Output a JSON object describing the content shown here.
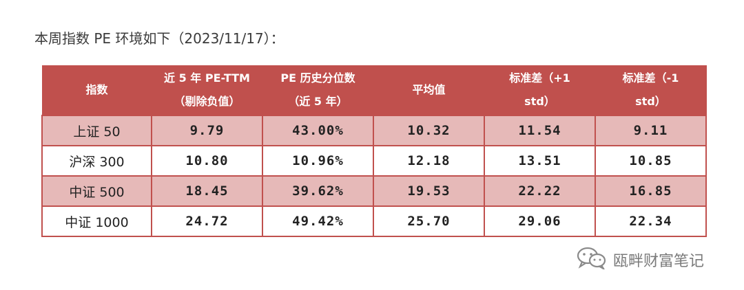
{
  "heading": "本周指数 PE 环境如下（2023/11/17）：",
  "table": {
    "headers": [
      {
        "line1": "指数",
        "line2": ""
      },
      {
        "line1": "近 5 年 PE-TTM",
        "line2": "（剔除负值）"
      },
      {
        "line1": "PE 历史分位数",
        "line2": "（近 5 年）"
      },
      {
        "line1": "平均值",
        "line2": ""
      },
      {
        "line1": "标准差（+1",
        "line2": "std）"
      },
      {
        "line1": "标准差（-1",
        "line2": "std）"
      }
    ],
    "rows": [
      {
        "name": "上证 50",
        "pe": "9.79",
        "pct": "43.00%",
        "avg": "10.32",
        "plus": "11.54",
        "minus": "9.11"
      },
      {
        "name": "沪深 300",
        "pe": "10.80",
        "pct": "10.96%",
        "avg": "12.18",
        "plus": "13.51",
        "minus": "10.85"
      },
      {
        "name": "中证 500",
        "pe": "18.45",
        "pct": "39.62%",
        "avg": "19.53",
        "plus": "22.22",
        "minus": "16.85"
      },
      {
        "name": "中证 1000",
        "pe": "24.72",
        "pct": "49.42%",
        "avg": "25.70",
        "plus": "29.06",
        "minus": "22.34"
      }
    ]
  },
  "watermark": {
    "text": "瓯畔财富笔记",
    "icon": "wechat-icon"
  },
  "colors": {
    "header_bg": "#c0504d",
    "shaded_row": "#e6b9b8",
    "border": "#c0504d"
  }
}
